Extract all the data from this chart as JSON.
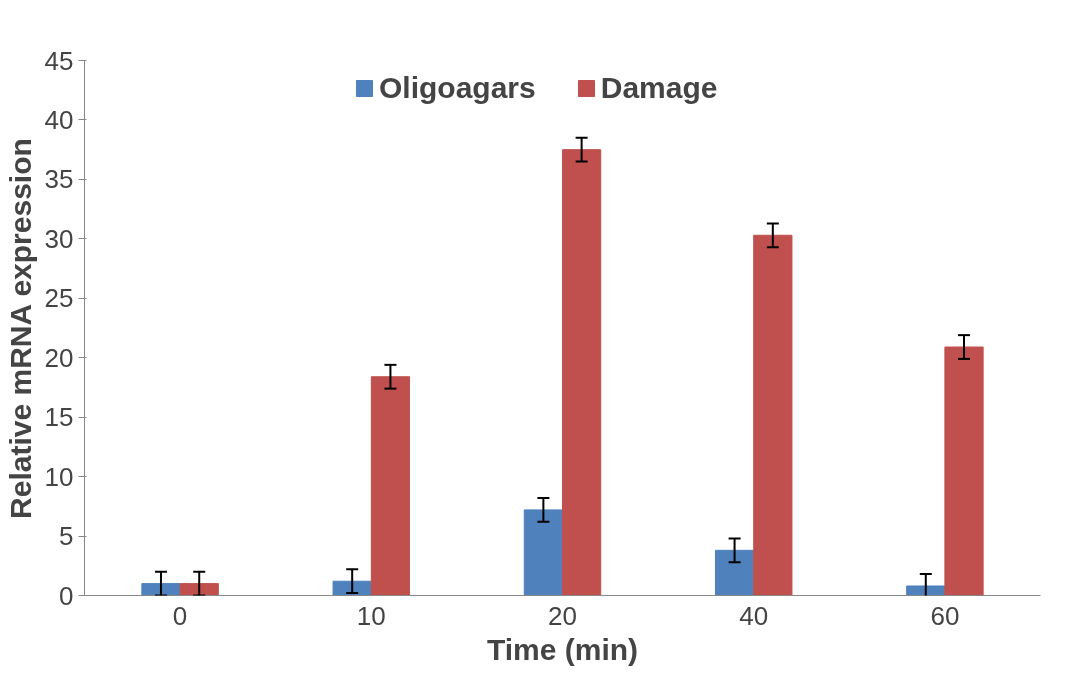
{
  "chart_data": {
    "type": "bar",
    "xlabel": "Time (min)",
    "ylabel": "Relative mRNA expression",
    "categories": [
      "0",
      "10",
      "20",
      "40",
      "60"
    ],
    "series": [
      {
        "name": "Oligoagars",
        "color": "#4f81bd",
        "values": [
          1.0,
          1.2,
          7.2,
          3.8,
          0.8
        ],
        "errors": [
          1.0,
          1.0,
          1.0,
          1.0,
          1.0
        ]
      },
      {
        "name": "Damage",
        "color": "#c0504d",
        "values": [
          1.0,
          18.4,
          37.5,
          30.3,
          20.9
        ],
        "errors": [
          1.0,
          1.0,
          1.0,
          1.0,
          1.0
        ]
      }
    ],
    "ylim": [
      0,
      45
    ],
    "yticks": [
      0,
      5,
      10,
      15,
      20,
      25,
      30,
      35,
      40,
      45
    ],
    "grid": false,
    "legend": "top"
  }
}
